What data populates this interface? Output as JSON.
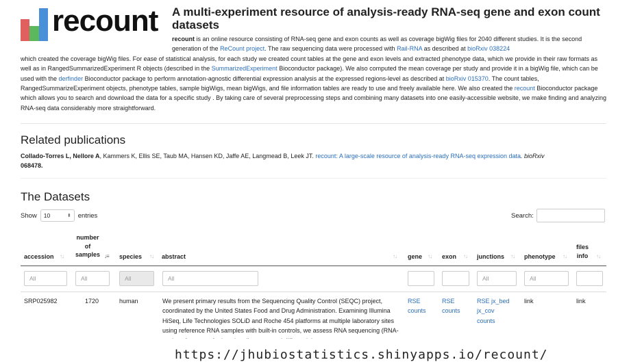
{
  "logo": {
    "text": "recount",
    "colors": [
      "#e06060",
      "#5cb85c",
      "#4a90d9"
    ]
  },
  "header": {
    "title": "A multi-experiment resource of analysis-ready RNA-seq gene and exon count datasets"
  },
  "intro": {
    "p1_bold": "recount",
    "p1_a": " is an online resource consisting of RNA-seq gene and exon counts as well as coverage bigWig files for 2040 different studies. It is the second generation of the ",
    "link_recount_project": "ReCount project",
    "p1_b": ". The raw sequencing data were processed with ",
    "link_rail": "Rail-RNA",
    "p1_c": " as described at ",
    "link_biorxiv1": "bioRxiv 038224",
    "p1_d": " which created the coverage bigWig files. For ease of statistical analysis, for each study we created count tables at the gene and exon levels and extracted phenotype data, which we provide in their raw formats as well as in RangedSummarizedExperiment R objects (described in the ",
    "link_se": "SummarizedExperiment",
    "p1_e": " Bioconductor package). We also computed the mean coverage per study and provide it in a bigWig file, which can be used with the ",
    "link_derfinder": "derfinder",
    "p1_f": " Bioconductor package to perform annotation-agnostic differential expression analysis at the expressed regions-level as described at ",
    "link_biorxiv2": "bioRxiv 015370",
    "p1_g": ". The count tables, RangedSummarizeExperiment objects, phenotype tables, sample bigWigs, mean bigWigs, and file information tables are ready to use and freely available here. We also created the ",
    "link_recount": "recount",
    "p1_h": " Bioconductor package which allows you to search and download the data for a specific study . By taking care of several preprocessing steps and combining many datasets into one easily-accessible website, we make finding and analyzing RNA-seq data considerably more straightforward."
  },
  "related": {
    "heading": "Related publications",
    "authors_bold": "Collado-Torres L, Nellore A",
    "authors_rest": ", Kammers K, Ellis SE, Taub MA, Hansen KD, Jaffe AE, Langmead B, Leek JT. ",
    "paper_link": "recount: A large-scale resource of analysis-ready RNA-seq expression data",
    "journal": ". bioRxiv",
    "doi": "068478."
  },
  "datasets": {
    "heading": "The Datasets",
    "show_label": "Show",
    "entries_value": "10",
    "entries_label": "entries",
    "search_label": "Search:",
    "columns": {
      "accession": "accession",
      "samples_1": "number",
      "samples_2": "of",
      "samples_3": "samples",
      "species": "species",
      "abstract": "abstract",
      "gene": "gene",
      "exon": "exon",
      "junctions": "junctions",
      "phenotype": "phenotype",
      "files_1": "files",
      "files_2": "info"
    },
    "filter_placeholder": "All",
    "row": {
      "accession": "SRP025982",
      "samples": "1720",
      "species": "human",
      "abstract": "We present primary results from the Sequencing Quality Control (SEQC) project, coordinated by the United States Food and Drug Administration. Examining Illumina HiSeq, Life Technologies SOLiD and Roche 454 platforms at multiple laboratory sites using reference RNA samples with built-in controls, we assess RNA sequencing (RNA-seq) performance for junction discovery and differential",
      "gene_1": "RSE",
      "gene_2": "counts",
      "exon_1": "RSE",
      "exon_2": "counts",
      "junc_1": "RSE jx_bed",
      "junc_2": "jx_cov",
      "junc_3": "counts",
      "phenotype": "link",
      "files": "link"
    }
  },
  "footer": {
    "url": "https://jhubiostatistics.shinyapps.io/recount/"
  }
}
